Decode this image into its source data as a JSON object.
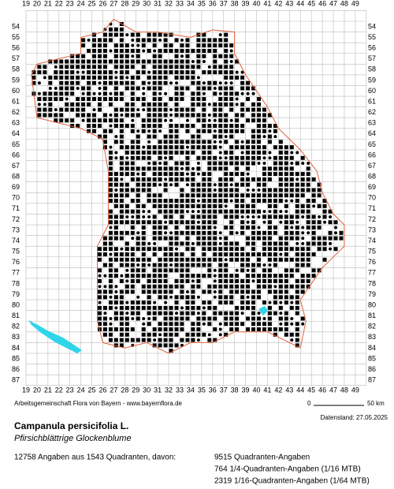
{
  "map": {
    "columns": [
      "19",
      "20",
      "21",
      "22",
      "23",
      "24",
      "25",
      "26",
      "27",
      "28",
      "29",
      "30",
      "31",
      "32",
      "33",
      "34",
      "35",
      "36",
      "37",
      "38",
      "39",
      "40",
      "41",
      "42",
      "43",
      "44",
      "45",
      "46",
      "47",
      "48",
      "49"
    ],
    "rows": [
      "54",
      "55",
      "56",
      "57",
      "58",
      "59",
      "60",
      "61",
      "62",
      "63",
      "64",
      "65",
      "66",
      "67",
      "68",
      "69",
      "70",
      "71",
      "72",
      "73",
      "74",
      "75",
      "76",
      "77",
      "78",
      "79",
      "80",
      "81",
      "82",
      "83",
      "84",
      "85",
      "86",
      "87"
    ]
  },
  "footer": {
    "credit": "Arbeitsgemeinschaft Flora von Bayern - www.bayernflora.de",
    "scale_start": "0",
    "scale_end": "50 km",
    "date": "Datenstand: 27.05.2025",
    "title": "Campanula persicifolia L.",
    "subtitle": "Pfirsichblättrige Glockenblume",
    "summary": "12758 Angaben aus 1543 Quadranten, davon:",
    "stats": [
      "9515 Quadranten-Angaben",
      "764 1/4-Quadranten-Angaben (1/16 MTB)",
      "2319 1/16-Quadranten-Angaben (1/64 MTB)"
    ]
  }
}
